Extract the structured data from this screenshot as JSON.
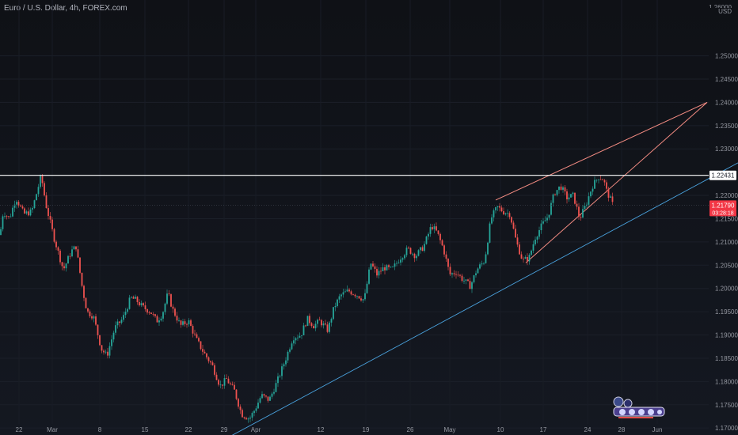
{
  "chart_data": {
    "type": "candlestick",
    "title": "Euro / U.S. Dollar, 4h, FOREX.com",
    "currency_label": "USD",
    "currency_top_partial": "1.26000",
    "y_ticks": [
      "1.25000",
      "1.24500",
      "1.24000",
      "1.23500",
      "1.23000",
      "1.22000",
      "1.21500",
      "1.21000",
      "1.20500",
      "1.20000",
      "1.19500",
      "1.19000",
      "1.18500",
      "1.18000",
      "1.17500",
      "1.17000"
    ],
    "x_ticks": [
      "22",
      "Mar",
      "8",
      "15",
      "22",
      "29",
      "Apr",
      "12",
      "19",
      "26",
      "May",
      "10",
      "17",
      "24",
      "28",
      "Jun"
    ],
    "ylim": [
      1.1685,
      1.262
    ],
    "price_line": {
      "label": "1.22431",
      "value": 1.22431,
      "color": "#ffffff"
    },
    "last_price": {
      "label": "1.21790",
      "countdown": "03:28:18",
      "value": 1.2179,
      "color": "#f23645"
    },
    "colors": {
      "up": "#26a69a",
      "down": "#ef5350",
      "wedge": "#f28b82",
      "trend": "#4aa3df",
      "background": "#131722"
    },
    "path": [
      [
        0,
        1.2115
      ],
      [
        4,
        1.2165
      ],
      [
        12,
        1.215
      ],
      [
        20,
        1.2195
      ],
      [
        30,
        1.216
      ],
      [
        40,
        1.2165
      ],
      [
        52,
        1.2242
      ],
      [
        58,
        1.218
      ],
      [
        68,
        1.211
      ],
      [
        80,
        1.204
      ],
      [
        90,
        1.208
      ],
      [
        96,
        1.209
      ],
      [
        104,
        1.2
      ],
      [
        110,
        1.195
      ],
      [
        118,
        1.194
      ],
      [
        128,
        1.187
      ],
      [
        135,
        1.1855
      ],
      [
        145,
        1.1915
      ],
      [
        155,
        1.1935
      ],
      [
        165,
        1.198
      ],
      [
        172,
        1.1975
      ],
      [
        180,
        1.196
      ],
      [
        190,
        1.195
      ],
      [
        198,
        1.193
      ],
      [
        205,
        1.1945
      ],
      [
        212,
        1.199
      ],
      [
        218,
        1.1955
      ],
      [
        228,
        1.192
      ],
      [
        238,
        1.193
      ],
      [
        248,
        1.189
      ],
      [
        258,
        1.186
      ],
      [
        268,
        1.1835
      ],
      [
        278,
        1.179
      ],
      [
        286,
        1.1805
      ],
      [
        296,
        1.178
      ],
      [
        305,
        1.173
      ],
      [
        315,
        1.172
      ],
      [
        322,
        1.174
      ],
      [
        330,
        1.177
      ],
      [
        340,
        1.176
      ],
      [
        350,
        1.18
      ],
      [
        360,
        1.1845
      ],
      [
        370,
        1.1895
      ],
      [
        380,
        1.19
      ],
      [
        388,
        1.1935
      ],
      [
        396,
        1.192
      ],
      [
        404,
        1.193
      ],
      [
        414,
        1.191
      ],
      [
        422,
        1.196
      ],
      [
        430,
        1.1985
      ],
      [
        440,
        1.1995
      ],
      [
        452,
        1.1985
      ],
      [
        460,
        1.1975
      ],
      [
        468,
        1.2055
      ],
      [
        476,
        1.203
      ],
      [
        485,
        1.2045
      ],
      [
        495,
        1.204
      ],
      [
        505,
        1.2065
      ],
      [
        515,
        1.2085
      ],
      [
        525,
        1.207
      ],
      [
        535,
        1.209
      ],
      [
        545,
        1.2135
      ],
      [
        552,
        1.212
      ],
      [
        560,
        1.2085
      ],
      [
        568,
        1.203
      ],
      [
        576,
        1.2035
      ],
      [
        584,
        1.202
      ],
      [
        594,
        1.2005
      ],
      [
        602,
        1.204
      ],
      [
        612,
        1.206
      ],
      [
        620,
        1.215
      ],
      [
        628,
        1.2175
      ],
      [
        636,
        1.2165
      ],
      [
        644,
        1.216
      ],
      [
        652,
        1.21
      ],
      [
        660,
        1.206
      ],
      [
        668,
        1.2065
      ],
      [
        676,
        1.211
      ],
      [
        684,
        1.2135
      ],
      [
        692,
        1.2155
      ],
      [
        700,
        1.2205
      ],
      [
        708,
        1.222
      ],
      [
        716,
        1.2195
      ],
      [
        724,
        1.22
      ],
      [
        732,
        1.215
      ],
      [
        740,
        1.218
      ],
      [
        748,
        1.222
      ],
      [
        756,
        1.224
      ],
      [
        762,
        1.2235
      ],
      [
        766,
        1.221
      ],
      [
        770,
        1.2195
      ],
      [
        774,
        1.2179
      ]
    ],
    "overlays": {
      "wedge_upper": [
        [
          626,
          1.219
        ],
        [
          893,
          1.24
        ]
      ],
      "wedge_lower": [
        [
          664,
          1.2055
        ],
        [
          893,
          1.24
        ]
      ],
      "trendline": [
        [
          272,
          1.1665
        ],
        [
          932,
          1.227
        ]
      ]
    }
  }
}
